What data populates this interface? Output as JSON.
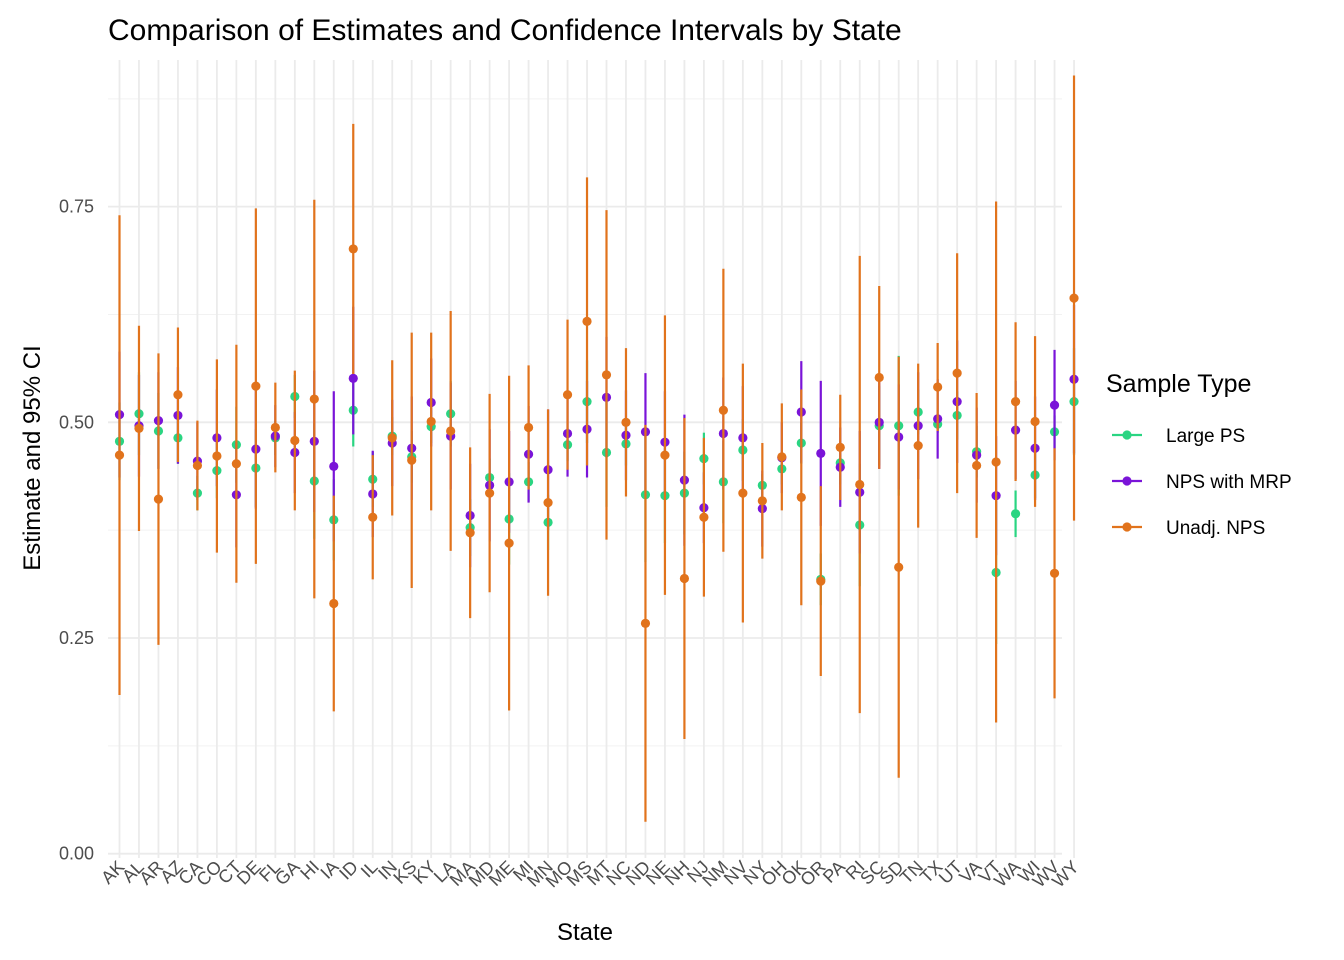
{
  "chart_data": {
    "type": "scatter",
    "title": "Comparison of Estimates and Confidence Intervals by State",
    "xlabel": "State",
    "ylabel": "Estimate and 95% CI",
    "ylim": [
      -0.005,
      0.92
    ],
    "yticks": [
      0.0,
      0.25,
      0.5,
      0.75
    ],
    "ytick_labels": [
      "0.00",
      "0.25",
      "0.50",
      "0.75"
    ],
    "grid": true,
    "legend": {
      "title": "Sample Type",
      "position": "right"
    },
    "categories": [
      "AK",
      "AL",
      "AR",
      "AZ",
      "CA",
      "CO",
      "CT",
      "DE",
      "FL",
      "GA",
      "HI",
      "IA",
      "ID",
      "IL",
      "IN",
      "KS",
      "KY",
      "LA",
      "MA",
      "MD",
      "ME",
      "MI",
      "MN",
      "MO",
      "MS",
      "MT",
      "NC",
      "ND",
      "NE",
      "NH",
      "NJ",
      "NM",
      "NV",
      "NY",
      "OH",
      "OK",
      "OR",
      "PA",
      "RI",
      "SC",
      "SD",
      "TN",
      "TX",
      "UT",
      "VA",
      "VT",
      "WA",
      "WI",
      "WV",
      "WY"
    ],
    "series": [
      {
        "name": "Large PS",
        "color": "#2ad582",
        "points": [
          [
            0.478,
            0.433,
            0.523
          ],
          [
            0.51,
            0.462,
            0.558
          ],
          [
            0.49,
            0.446,
            0.534
          ],
          [
            0.482,
            0.452,
            0.512
          ],
          [
            0.418,
            0.398,
            0.438
          ],
          [
            0.444,
            0.412,
            0.476
          ],
          [
            0.474,
            0.43,
            0.518
          ],
          [
            0.447,
            0.402,
            0.492
          ],
          [
            0.482,
            0.462,
            0.502
          ],
          [
            0.53,
            0.505,
            0.555
          ],
          [
            0.432,
            0.365,
            0.499
          ],
          [
            0.387,
            0.34,
            0.434
          ],
          [
            0.514,
            0.472,
            0.556
          ],
          [
            0.434,
            0.402,
            0.466
          ],
          [
            0.484,
            0.462,
            0.506
          ],
          [
            0.46,
            0.43,
            0.49
          ],
          [
            0.495,
            0.476,
            0.514
          ],
          [
            0.51,
            0.472,
            0.548
          ],
          [
            0.378,
            0.345,
            0.411
          ],
          [
            0.436,
            0.414,
            0.458
          ],
          [
            0.388,
            0.335,
            0.441
          ],
          [
            0.431,
            0.408,
            0.454
          ],
          [
            0.384,
            0.352,
            0.416
          ],
          [
            0.474,
            0.455,
            0.493
          ],
          [
            0.524,
            0.476,
            0.572
          ],
          [
            0.465,
            0.402,
            0.528
          ],
          [
            0.475,
            0.45,
            0.5
          ],
          [
            0.416,
            0.338,
            0.494
          ],
          [
            0.415,
            0.36,
            0.47
          ],
          [
            0.418,
            0.37,
            0.466
          ],
          [
            0.458,
            0.428,
            0.488
          ],
          [
            0.431,
            0.383,
            0.479
          ],
          [
            0.468,
            0.432,
            0.504
          ],
          [
            0.427,
            0.414,
            0.44
          ],
          [
            0.446,
            0.428,
            0.464
          ],
          [
            0.476,
            0.452,
            0.5
          ],
          [
            0.318,
            0.288,
            0.348
          ],
          [
            0.453,
            0.428,
            0.478
          ],
          [
            0.381,
            0.31,
            0.452
          ],
          [
            0.496,
            0.45,
            0.542
          ],
          [
            0.496,
            0.415,
            0.577
          ],
          [
            0.512,
            0.486,
            0.538
          ],
          [
            0.498,
            0.488,
            0.508
          ],
          [
            0.508,
            0.48,
            0.536
          ],
          [
            0.466,
            0.436,
            0.496
          ],
          [
            0.326,
            0.243,
            0.409
          ],
          [
            0.394,
            0.367,
            0.421
          ],
          [
            0.439,
            0.412,
            0.466
          ],
          [
            0.489,
            0.47,
            0.508
          ],
          [
            0.524,
            0.462,
            0.586
          ]
        ]
      },
      {
        "name": "NPS with MRP",
        "color": "#7a14d8",
        "points": [
          [
            0.509,
            0.436,
            0.582
          ],
          [
            0.496,
            0.437,
            0.555
          ],
          [
            0.502,
            0.446,
            0.558
          ],
          [
            0.508,
            0.452,
            0.564
          ],
          [
            0.455,
            0.41,
            0.5
          ],
          [
            0.482,
            0.426,
            0.538
          ],
          [
            0.416,
            0.355,
            0.477
          ],
          [
            0.469,
            0.4,
            0.538
          ],
          [
            0.484,
            0.448,
            0.52
          ],
          [
            0.465,
            0.418,
            0.512
          ],
          [
            0.478,
            0.396,
            0.56
          ],
          [
            0.449,
            0.362,
            0.536
          ],
          [
            0.551,
            0.486,
            0.634
          ],
          [
            0.417,
            0.367,
            0.467
          ],
          [
            0.476,
            0.426,
            0.526
          ],
          [
            0.47,
            0.41,
            0.53
          ],
          [
            0.523,
            0.472,
            0.574
          ],
          [
            0.484,
            0.422,
            0.546
          ],
          [
            0.392,
            0.332,
            0.452
          ],
          [
            0.427,
            0.362,
            0.492
          ],
          [
            0.431,
            0.372,
            0.49
          ],
          [
            0.463,
            0.407,
            0.519
          ],
          [
            0.445,
            0.375,
            0.515
          ],
          [
            0.487,
            0.437,
            0.537
          ],
          [
            0.492,
            0.436,
            0.548
          ],
          [
            0.529,
            0.459,
            0.599
          ],
          [
            0.485,
            0.433,
            0.537
          ],
          [
            0.489,
            0.421,
            0.557
          ],
          [
            0.477,
            0.418,
            0.536
          ],
          [
            0.433,
            0.357,
            0.509
          ],
          [
            0.401,
            0.36,
            0.442
          ],
          [
            0.487,
            0.422,
            0.552
          ],
          [
            0.482,
            0.422,
            0.542
          ],
          [
            0.4,
            0.356,
            0.444
          ],
          [
            0.459,
            0.418,
            0.5
          ],
          [
            0.512,
            0.453,
            0.571
          ],
          [
            0.464,
            0.38,
            0.548
          ],
          [
            0.448,
            0.402,
            0.494
          ],
          [
            0.419,
            0.348,
            0.49
          ],
          [
            0.5,
            0.446,
            0.554
          ],
          [
            0.483,
            0.422,
            0.544
          ],
          [
            0.496,
            0.434,
            0.558
          ],
          [
            0.504,
            0.458,
            0.55
          ],
          [
            0.524,
            0.453,
            0.595
          ],
          [
            0.462,
            0.407,
            0.517
          ],
          [
            0.415,
            0.346,
            0.484
          ],
          [
            0.491,
            0.434,
            0.548
          ],
          [
            0.47,
            0.41,
            0.53
          ],
          [
            0.52,
            0.456,
            0.584
          ],
          [
            0.55,
            0.464,
            0.636
          ]
        ]
      },
      {
        "name": "Unadj. NPS",
        "color": "#e1731c",
        "points": [
          [
            0.462,
            0.184,
            0.74
          ],
          [
            0.493,
            0.374,
            0.612
          ],
          [
            0.411,
            0.242,
            0.58
          ],
          [
            0.532,
            0.454,
            0.61
          ],
          [
            0.45,
            0.398,
            0.502
          ],
          [
            0.461,
            0.349,
            0.573
          ],
          [
            0.452,
            0.314,
            0.59
          ],
          [
            0.542,
            0.336,
            0.748
          ],
          [
            0.494,
            0.442,
            0.546
          ],
          [
            0.479,
            0.398,
            0.56
          ],
          [
            0.527,
            0.296,
            0.758
          ],
          [
            0.29,
            0.165,
            0.415
          ],
          [
            0.701,
            0.556,
            0.846
          ],
          [
            0.39,
            0.318,
            0.462
          ],
          [
            0.482,
            0.392,
            0.572
          ],
          [
            0.456,
            0.308,
            0.604
          ],
          [
            0.501,
            0.398,
            0.604
          ],
          [
            0.49,
            0.351,
            0.629
          ],
          [
            0.372,
            0.273,
            0.471
          ],
          [
            0.418,
            0.303,
            0.533
          ],
          [
            0.36,
            0.166,
            0.554
          ],
          [
            0.494,
            0.422,
            0.566
          ],
          [
            0.407,
            0.299,
            0.515
          ],
          [
            0.532,
            0.445,
            0.619
          ],
          [
            0.617,
            0.45,
            0.784
          ],
          [
            0.555,
            0.364,
            0.746
          ],
          [
            0.5,
            0.414,
            0.586
          ],
          [
            0.267,
            0.037,
            0.497
          ],
          [
            0.462,
            0.3,
            0.624
          ],
          [
            0.319,
            0.133,
            0.505
          ],
          [
            0.39,
            0.298,
            0.482
          ],
          [
            0.514,
            0.35,
            0.678
          ],
          [
            0.418,
            0.268,
            0.568
          ],
          [
            0.409,
            0.342,
            0.476
          ],
          [
            0.46,
            0.398,
            0.522
          ],
          [
            0.413,
            0.288,
            0.538
          ],
          [
            0.316,
            0.206,
            0.426
          ],
          [
            0.471,
            0.41,
            0.532
          ],
          [
            0.428,
            0.163,
            0.693
          ],
          [
            0.552,
            0.446,
            0.658
          ],
          [
            0.332,
            0.088,
            0.576
          ],
          [
            0.473,
            0.378,
            0.568
          ],
          [
            0.541,
            0.49,
            0.592
          ],
          [
            0.557,
            0.418,
            0.696
          ],
          [
            0.45,
            0.366,
            0.534
          ],
          [
            0.454,
            0.152,
            0.756
          ],
          [
            0.524,
            0.432,
            0.616
          ],
          [
            0.501,
            0.402,
            0.6
          ],
          [
            0.325,
            0.18,
            0.47
          ],
          [
            0.644,
            0.386,
            0.902
          ]
        ]
      }
    ]
  }
}
